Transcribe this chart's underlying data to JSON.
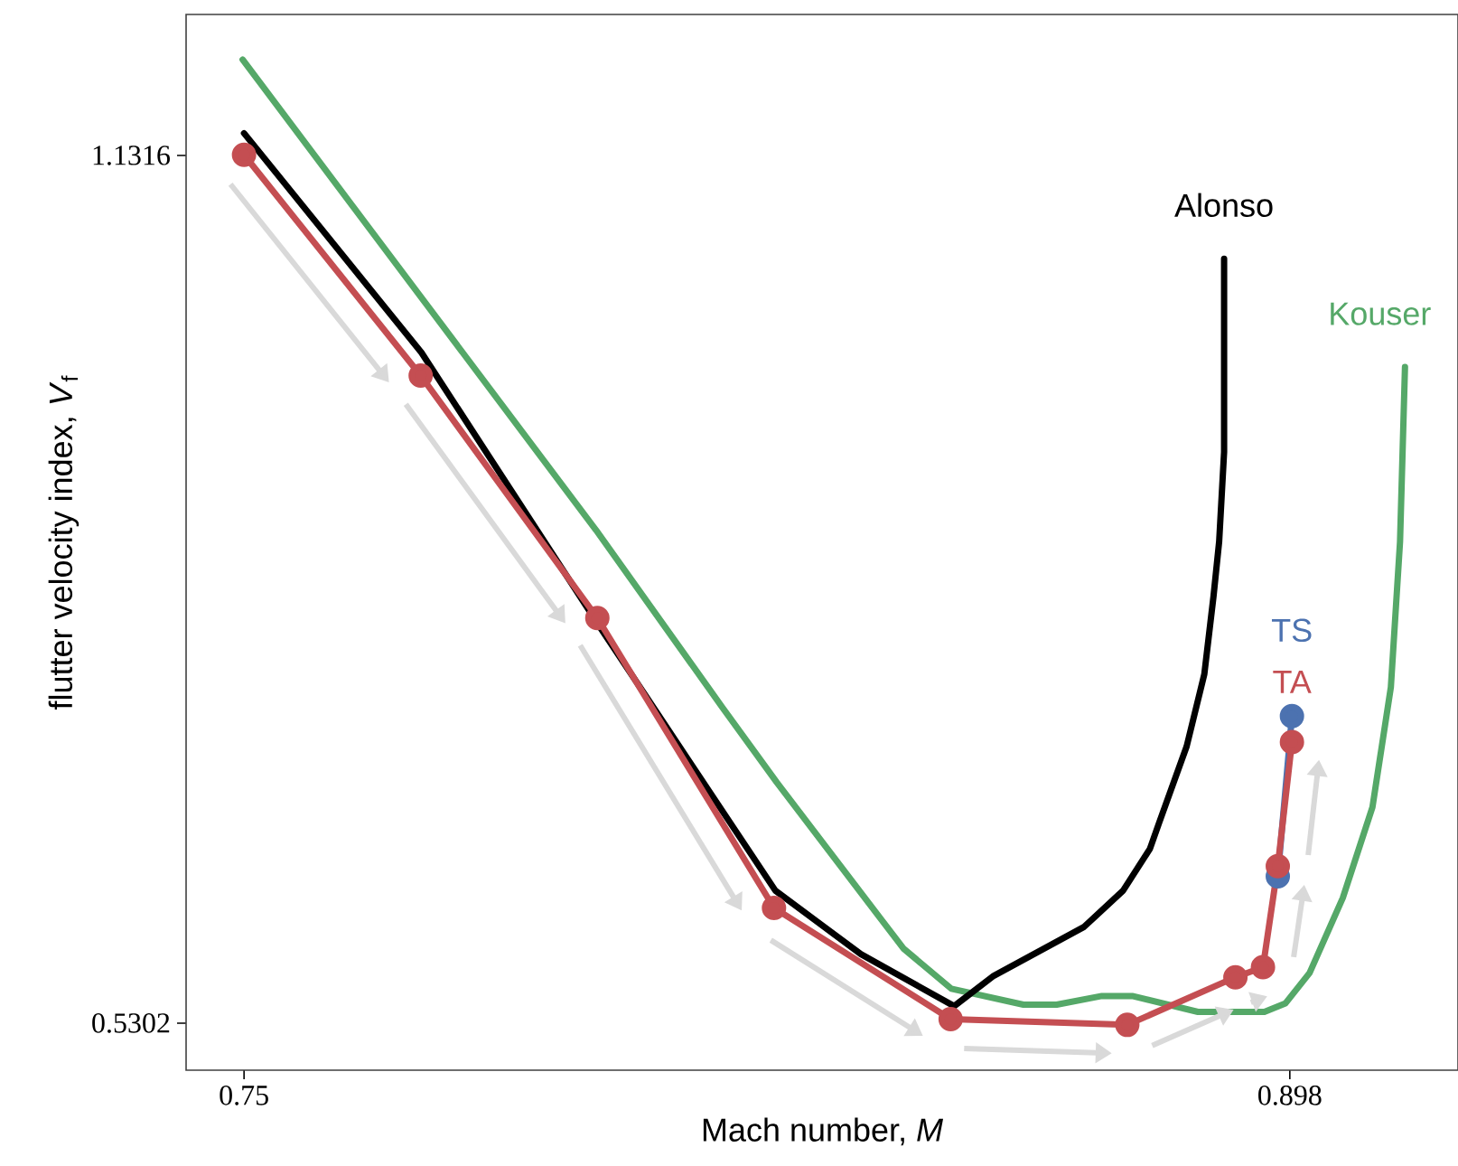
{
  "chart_data": {
    "type": "line",
    "xlabel": "Mach number, *M*",
    "ylabel": "flutter velocity index, *V*$_{f}$",
    "xlim": [
      0.7418,
      0.9218
    ],
    "ylim": [
      0.4976,
      1.2293
    ],
    "xticks": [
      0.75,
      0.898
    ],
    "yticks": [
      0.5302,
      1.1316
    ],
    "grid": false,
    "line_style": "solid",
    "series": [
      {
        "name": "Kouser",
        "color": "#55a868",
        "marker": "none",
        "x": [
          0.7498,
          0.7998,
          0.8177,
          0.8254,
          0.8433,
          0.8501,
          0.8603,
          0.865,
          0.8714,
          0.8757,
          0.885,
          0.8944,
          0.8974,
          0.9008,
          0.9055,
          0.9097,
          0.9123,
          0.9136,
          0.9143
        ],
        "values": [
          1.198,
          0.872,
          0.749,
          0.697,
          0.582,
          0.554,
          0.543,
          0.543,
          0.549,
          0.549,
          0.538,
          0.538,
          0.544,
          0.565,
          0.617,
          0.68,
          0.763,
          0.864,
          0.985
        ]
      },
      {
        "name": "Alonso",
        "color": "#000000",
        "marker": "none",
        "x": [
          0.75,
          0.7751,
          0.8006,
          0.8252,
          0.8373,
          0.8505,
          0.8561,
          0.8689,
          0.8744,
          0.8782,
          0.8795,
          0.8834,
          0.8859,
          0.8872,
          0.888,
          0.8887,
          0.8887
        ],
        "values": [
          1.147,
          0.995,
          0.803,
          0.622,
          0.578,
          0.542,
          0.563,
          0.597,
          0.622,
          0.651,
          0.669,
          0.722,
          0.772,
          0.826,
          0.864,
          0.926,
          1.06
        ]
      },
      {
        "name": "TS",
        "color": "#4c72b0",
        "marker": "circle",
        "x": [
          0.8963,
          0.8983
        ],
        "values": [
          0.632,
          0.743
        ]
      },
      {
        "name": "TA",
        "color": "#c44e52",
        "marker": "circle",
        "x": [
          0.75,
          0.775,
          0.8,
          0.825,
          0.85,
          0.875,
          0.8903,
          0.8942,
          0.8963,
          0.8983
        ],
        "values": [
          1.132,
          0.979,
          0.811,
          0.61,
          0.533,
          0.529,
          0.562,
          0.569,
          0.639,
          0.725
        ]
      }
    ]
  }
}
